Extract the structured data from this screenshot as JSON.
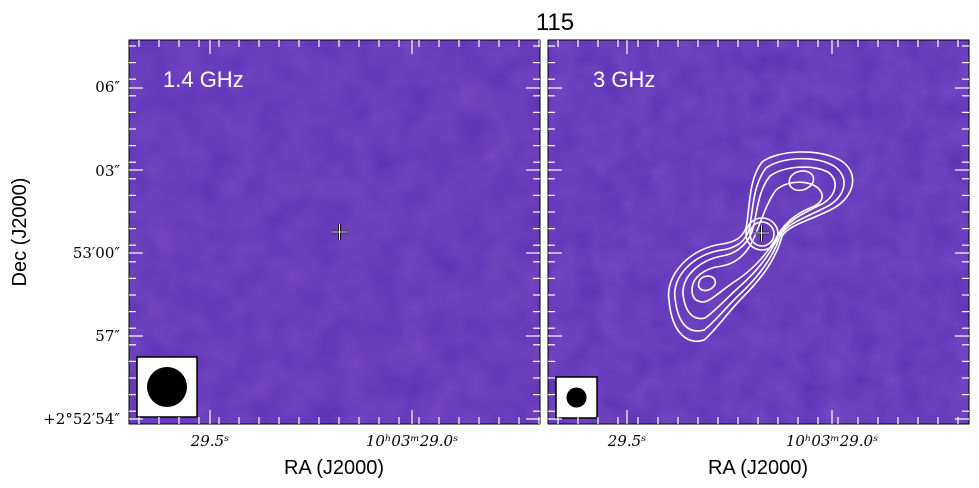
{
  "title": "115",
  "colors": {
    "background": "#5b31b6",
    "contour": "#ffffff",
    "beam": "#000000"
  },
  "chart_data": {
    "type": "heatmap",
    "title": "115",
    "xlabel": "RA (J2000)",
    "ylabel": "Dec (J2000)",
    "yticks": [
      "06″",
      "03″",
      "53′00″",
      "57″",
      "+2°52′54″"
    ],
    "xticks": [
      "29.5ˢ",
      "10ʰ03ᵐ29.0ˢ"
    ],
    "panels": [
      {
        "name": "1.4 GHz",
        "label": "1.4 GHz",
        "beam": "large",
        "contours": false
      },
      {
        "name": "3 GHz",
        "label": "3 GHz",
        "beam": "small",
        "contours": true
      }
    ],
    "marker": "cross at source position",
    "grid": false
  }
}
